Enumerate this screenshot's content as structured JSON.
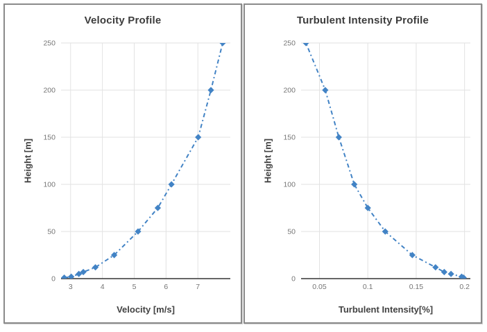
{
  "page": {
    "background": "#ffffff"
  },
  "theme": {
    "series_color": "#4283c5",
    "grid_color": "#e2e2e2",
    "baseline_color": "#333333",
    "tick_label_color": "#757575",
    "title_color": "#3c3c3c",
    "axis_title_color": "#424242",
    "frame_border_color": "#8a8a8a"
  },
  "chart_data": [
    {
      "type": "line",
      "title": "Velocity Profile",
      "xlabel": "Velocity [m/s]",
      "ylabel": "Height [m]",
      "marker": "diamond",
      "line_style": "dash-dot",
      "grid": true,
      "legend": "none",
      "xlim": [
        2.7,
        8.02
      ],
      "ylim": [
        0,
        250
      ],
      "x_ticks": [
        3,
        4,
        5,
        6,
        7
      ],
      "x_tick_labels": [
        "3",
        "4",
        "5",
        "6",
        "7"
      ],
      "y_ticks": [
        0,
        50,
        100,
        150,
        200,
        250
      ],
      "y_tick_labels": [
        "0",
        "50",
        "100",
        "150",
        "200",
        "250"
      ],
      "series": [
        {
          "name": "Velocity",
          "x": [
            2.8,
            3.02,
            3.26,
            3.4,
            3.78,
            4.37,
            5.12,
            5.74,
            6.17,
            7.01,
            7.41,
            7.78
          ],
          "y": [
            1,
            2,
            5,
            7,
            12,
            25,
            50,
            75,
            100,
            150,
            200,
            250
          ]
        }
      ]
    },
    {
      "type": "line",
      "title": "Turbulent Intensity Profile",
      "xlabel": "Turbulent Intensity[%]",
      "ylabel": "Height [m]",
      "marker": "diamond",
      "line_style": "dash-dot",
      "grid": true,
      "legend": "none",
      "xlim": [
        0.031,
        0.206
      ],
      "ylim": [
        0,
        250
      ],
      "x_ticks": [
        0.05,
        0.1,
        0.15,
        0.2
      ],
      "x_tick_labels": [
        "0.05",
        "0.1",
        "0.15",
        "0.2"
      ],
      "y_ticks": [
        0,
        50,
        100,
        150,
        200,
        250
      ],
      "y_tick_labels": [
        "0",
        "50",
        "100",
        "150",
        "200",
        "250"
      ],
      "series": [
        {
          "name": "Turbulent Intensity",
          "x": [
            0.199,
            0.197,
            0.186,
            0.179,
            0.17,
            0.146,
            0.118,
            0.1,
            0.086,
            0.07,
            0.056,
            0.036
          ],
          "y": [
            1,
            2,
            5,
            7,
            12,
            25,
            50,
            75,
            100,
            150,
            200,
            250
          ]
        }
      ]
    }
  ]
}
